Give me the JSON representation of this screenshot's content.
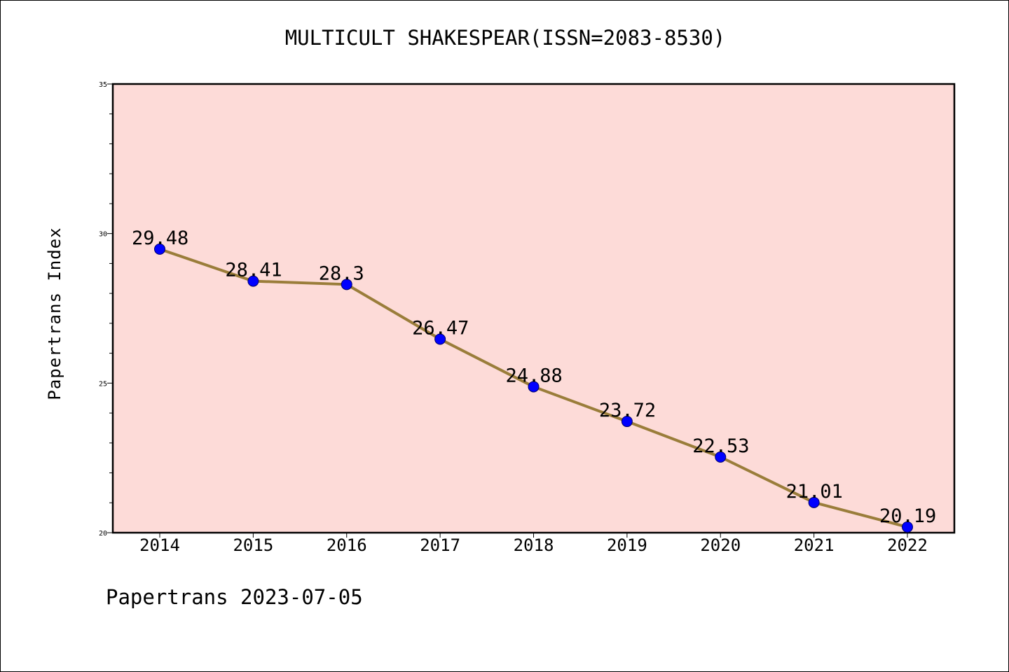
{
  "chart_data": {
    "type": "line",
    "title": "MULTICULT SHAKESPEAR(ISSN=2083-8530)",
    "xlabel": "",
    "ylabel": "Papertrans Index",
    "categories": [
      "2014",
      "2015",
      "2016",
      "2017",
      "2018",
      "2019",
      "2020",
      "2021",
      "2022"
    ],
    "series": [
      {
        "values": [
          29.48,
          28.41,
          28.3,
          26.47,
          24.88,
          23.72,
          22.53,
          21.01,
          20.19
        ],
        "labels": [
          "29.48",
          "28.41",
          "28.3",
          "26.47",
          "24.88",
          "23.72",
          "22.53",
          "21.01",
          "20.19"
        ]
      }
    ],
    "ylim": [
      20,
      35
    ],
    "yticks": [
      "20",
      "25",
      "30",
      "35"
    ],
    "grid": false,
    "footer": "Papertrans 2023-07-05",
    "colors": {
      "plot_background": "#fddbd8",
      "line": "#9a7d3a",
      "marker": "#0000ff"
    }
  }
}
